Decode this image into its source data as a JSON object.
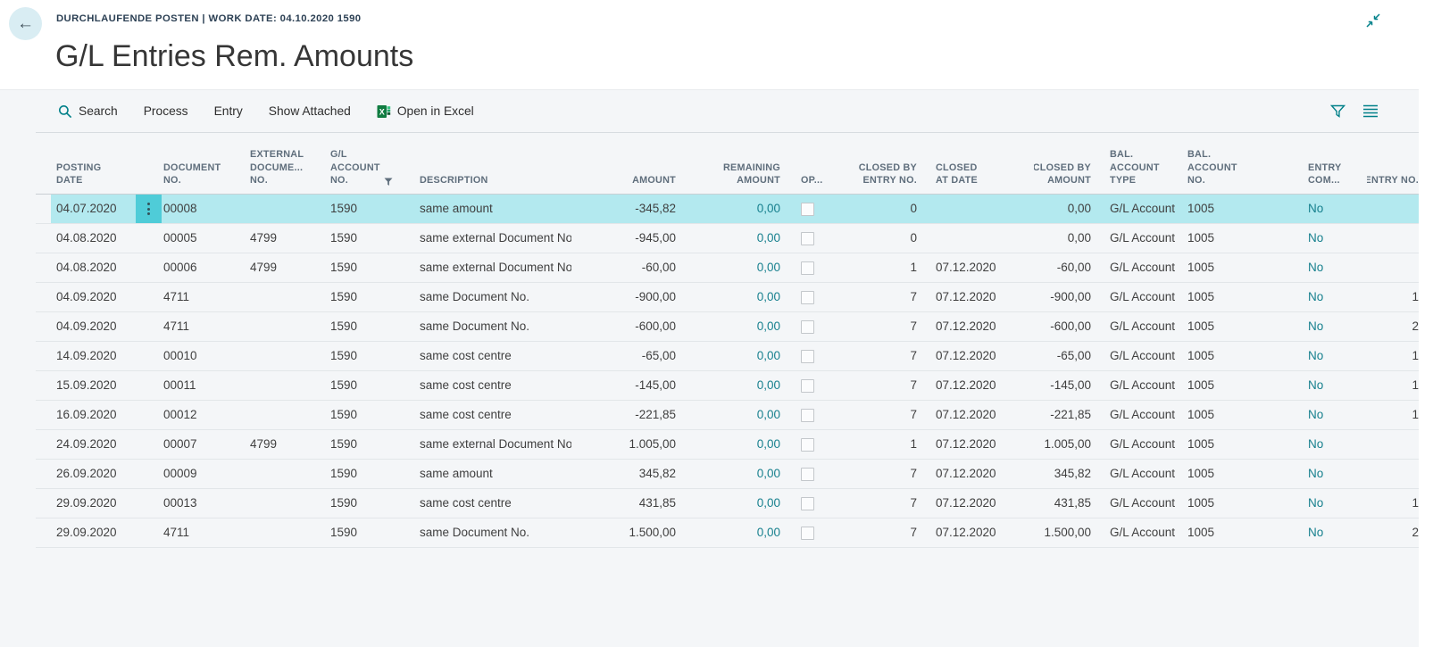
{
  "colors": {
    "accent": "#008089",
    "selection": "#b3e9ef",
    "row_menu_bg": "#4fccd8",
    "row_menu_dots": "#33525a",
    "link": "#17808e",
    "header_text": "#5f6e7c",
    "text": "#3f3f3f",
    "caption": "#2c4054",
    "title": "#363636",
    "card_bg": "#f4f6f8",
    "divider": "#e2e6e9",
    "header_border": "#c9cfd4",
    "toolbar_text": "#2e2e2e",
    "back_circle": "#d9edf3",
    "checkbox_border": "#c3c7cb",
    "excel_green": "#107c41"
  },
  "header": {
    "caption": "DURCHLAUFENDE POSTEN | WORK DATE: 04.10.2020 1590",
    "title": "G/L Entries Rem. Amounts"
  },
  "toolbar": {
    "items": [
      {
        "label": "Search",
        "icon": "search-icon"
      },
      {
        "label": "Process"
      },
      {
        "label": "Entry"
      },
      {
        "label": "Show Attached"
      },
      {
        "label": "Open in Excel",
        "icon": "excel-icon"
      }
    ],
    "right_icons": [
      "filter-icon",
      "list-icon"
    ]
  },
  "table": {
    "columns": [
      {
        "key": "posting_date",
        "label": "POSTING\nDATE"
      },
      {
        "key": "row_menu",
        "label": "",
        "type": "rowmenu"
      },
      {
        "key": "document_no",
        "label": "DOCUMENT\nNO."
      },
      {
        "key": "external_document_no",
        "label": "EXTERNAL\nDOCUME...\nNO."
      },
      {
        "key": "gl_account_no",
        "label": "G/L\nACCOUNT\nNO. ",
        "filter": true
      },
      {
        "key": "description",
        "label": "DESCRIPTION"
      },
      {
        "key": "amount",
        "label": "AMOUNT",
        "align": "right"
      },
      {
        "key": "remaining_amount",
        "label": "REMAINING\nAMOUNT",
        "align": "right",
        "link": true
      },
      {
        "key": "open",
        "label": "OP...",
        "type": "checkbox"
      },
      {
        "key": "closed_by_entry_no",
        "label": "CLOSED BY\nENTRY NO.",
        "align": "right"
      },
      {
        "key": "closed_at_date",
        "label": "CLOSED\nAT DATE"
      },
      {
        "key": "closed_by_amount",
        "label": "CLOSED BY\nAMOUNT",
        "align": "right"
      },
      {
        "key": "bal_account_type",
        "label": "BAL.\nACCOUNT\nTYPE"
      },
      {
        "key": "bal_account_no",
        "label": "BAL.\nACCOUNT\nNO."
      },
      {
        "key": "entry_com",
        "label": "ENTRY\nCOM...",
        "link": true
      },
      {
        "key": "entry_no",
        "label": "ENTRY NO.",
        "align": "right"
      }
    ],
    "rows": [
      {
        "selected": true,
        "posting_date": "04.07.2020",
        "document_no": "00008",
        "external_document_no": "",
        "gl_account_no": "1590",
        "description": "same amount",
        "amount": "-345,82",
        "remaining_amount": "0,00",
        "open": false,
        "closed_by_entry_no": "0",
        "closed_at_date": "",
        "closed_by_amount": "0,00",
        "bal_account_type": "G/L Account",
        "bal_account_no": "1005",
        "entry_com": "No",
        "entry_no": ""
      },
      {
        "posting_date": "04.08.2020",
        "document_no": "00005",
        "external_document_no": "4799",
        "gl_account_no": "1590",
        "description": "same external Document No.",
        "amount": "-945,00",
        "remaining_amount": "0,00",
        "open": false,
        "closed_by_entry_no": "0",
        "closed_at_date": "",
        "closed_by_amount": "0,00",
        "bal_account_type": "G/L Account",
        "bal_account_no": "1005",
        "entry_com": "No",
        "entry_no": ""
      },
      {
        "posting_date": "04.08.2020",
        "document_no": "00006",
        "external_document_no": "4799",
        "gl_account_no": "1590",
        "description": "same external Document No.",
        "amount": "-60,00",
        "remaining_amount": "0,00",
        "open": false,
        "closed_by_entry_no": "1",
        "closed_at_date": "07.12.2020",
        "closed_by_amount": "-60,00",
        "bal_account_type": "G/L Account",
        "bal_account_no": "1005",
        "entry_com": "No",
        "entry_no": ""
      },
      {
        "posting_date": "04.09.2020",
        "document_no": "4711",
        "external_document_no": "",
        "gl_account_no": "1590",
        "description": "same Document No.",
        "amount": "-900,00",
        "remaining_amount": "0,00",
        "open": false,
        "closed_by_entry_no": "7",
        "closed_at_date": "07.12.2020",
        "closed_by_amount": "-900,00",
        "bal_account_type": "G/L Account",
        "bal_account_no": "1005",
        "entry_com": "No",
        "entry_no": "1"
      },
      {
        "posting_date": "04.09.2020",
        "document_no": "4711",
        "external_document_no": "",
        "gl_account_no": "1590",
        "description": "same Document No.",
        "amount": "-600,00",
        "remaining_amount": "0,00",
        "open": false,
        "closed_by_entry_no": "7",
        "closed_at_date": "07.12.2020",
        "closed_by_amount": "-600,00",
        "bal_account_type": "G/L Account",
        "bal_account_no": "1005",
        "entry_com": "No",
        "entry_no": "2"
      },
      {
        "posting_date": "14.09.2020",
        "document_no": "00010",
        "external_document_no": "",
        "gl_account_no": "1590",
        "description": "same cost centre",
        "amount": "-65,00",
        "remaining_amount": "0,00",
        "open": false,
        "closed_by_entry_no": "7",
        "closed_at_date": "07.12.2020",
        "closed_by_amount": "-65,00",
        "bal_account_type": "G/L Account",
        "bal_account_no": "1005",
        "entry_com": "No",
        "entry_no": "1"
      },
      {
        "posting_date": "15.09.2020",
        "document_no": "00011",
        "external_document_no": "",
        "gl_account_no": "1590",
        "description": "same cost centre",
        "amount": "-145,00",
        "remaining_amount": "0,00",
        "open": false,
        "closed_by_entry_no": "7",
        "closed_at_date": "07.12.2020",
        "closed_by_amount": "-145,00",
        "bal_account_type": "G/L Account",
        "bal_account_no": "1005",
        "entry_com": "No",
        "entry_no": "1"
      },
      {
        "posting_date": "16.09.2020",
        "document_no": "00012",
        "external_document_no": "",
        "gl_account_no": "1590",
        "description": "same cost centre",
        "amount": "-221,85",
        "remaining_amount": "0,00",
        "open": false,
        "closed_by_entry_no": "7",
        "closed_at_date": "07.12.2020",
        "closed_by_amount": "-221,85",
        "bal_account_type": "G/L Account",
        "bal_account_no": "1005",
        "entry_com": "No",
        "entry_no": "1"
      },
      {
        "posting_date": "24.09.2020",
        "document_no": "00007",
        "external_document_no": "4799",
        "gl_account_no": "1590",
        "description": "same external Document No.",
        "amount": "1.005,00",
        "remaining_amount": "0,00",
        "open": false,
        "closed_by_entry_no": "1",
        "closed_at_date": "07.12.2020",
        "closed_by_amount": "1.005,00",
        "bal_account_type": "G/L Account",
        "bal_account_no": "1005",
        "entry_com": "No",
        "entry_no": ""
      },
      {
        "posting_date": "26.09.2020",
        "document_no": "00009",
        "external_document_no": "",
        "gl_account_no": "1590",
        "description": "same amount",
        "amount": "345,82",
        "remaining_amount": "0,00",
        "open": false,
        "closed_by_entry_no": "7",
        "closed_at_date": "07.12.2020",
        "closed_by_amount": "345,82",
        "bal_account_type": "G/L Account",
        "bal_account_no": "1005",
        "entry_com": "No",
        "entry_no": ""
      },
      {
        "posting_date": "29.09.2020",
        "document_no": "00013",
        "external_document_no": "",
        "gl_account_no": "1590",
        "description": "same cost centre",
        "amount": "431,85",
        "remaining_amount": "0,00",
        "open": false,
        "closed_by_entry_no": "7",
        "closed_at_date": "07.12.2020",
        "closed_by_amount": "431,85",
        "bal_account_type": "G/L Account",
        "bal_account_no": "1005",
        "entry_com": "No",
        "entry_no": "1"
      },
      {
        "posting_date": "29.09.2020",
        "document_no": "4711",
        "external_document_no": "",
        "gl_account_no": "1590",
        "description": "same Document No.",
        "amount": "1.500,00",
        "remaining_amount": "0,00",
        "open": false,
        "closed_by_entry_no": "7",
        "closed_at_date": "07.12.2020",
        "closed_by_amount": "1.500,00",
        "bal_account_type": "G/L Account",
        "bal_account_no": "1005",
        "entry_com": "No",
        "entry_no": "2"
      }
    ]
  }
}
